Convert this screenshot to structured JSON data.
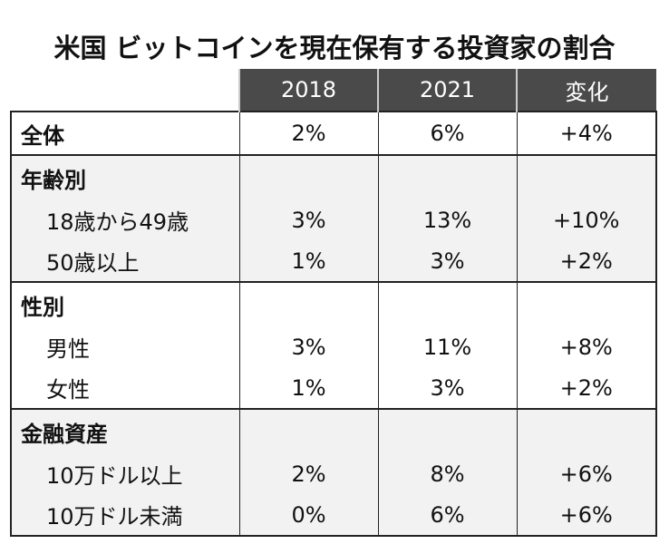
{
  "chart_data": {
    "type": "table",
    "title": "米国 ビットコインを現在保有する投資家の割合",
    "columns": [
      "2018",
      "2021",
      "変化"
    ],
    "total": {
      "label": "全体",
      "values": [
        "2%",
        "6%",
        "+4%"
      ]
    },
    "groups": [
      {
        "label": "年齢別",
        "rows": [
          {
            "label": "18歳から49歳",
            "values": [
              "3%",
              "13%",
              "+10%"
            ]
          },
          {
            "label": "50歳以上",
            "values": [
              "1%",
              "3%",
              "+2%"
            ]
          }
        ]
      },
      {
        "label": "性別",
        "rows": [
          {
            "label": "男性",
            "values": [
              "3%",
              "11%",
              "+8%"
            ]
          },
          {
            "label": "女性",
            "values": [
              "1%",
              "3%",
              "+2%"
            ]
          }
        ]
      },
      {
        "label": "金融資産",
        "rows": [
          {
            "label": "10万ドル以上",
            "values": [
              "2%",
              "8%",
              "+6%"
            ]
          },
          {
            "label": "10万ドル未満",
            "values": [
              "0%",
              "6%",
              "+6%"
            ]
          }
        ]
      }
    ]
  },
  "colors": {
    "header_bg": "#4a4a4a",
    "header_text": "#ffffff",
    "shade_bg": "#f2f2f2",
    "border": "#222222"
  }
}
